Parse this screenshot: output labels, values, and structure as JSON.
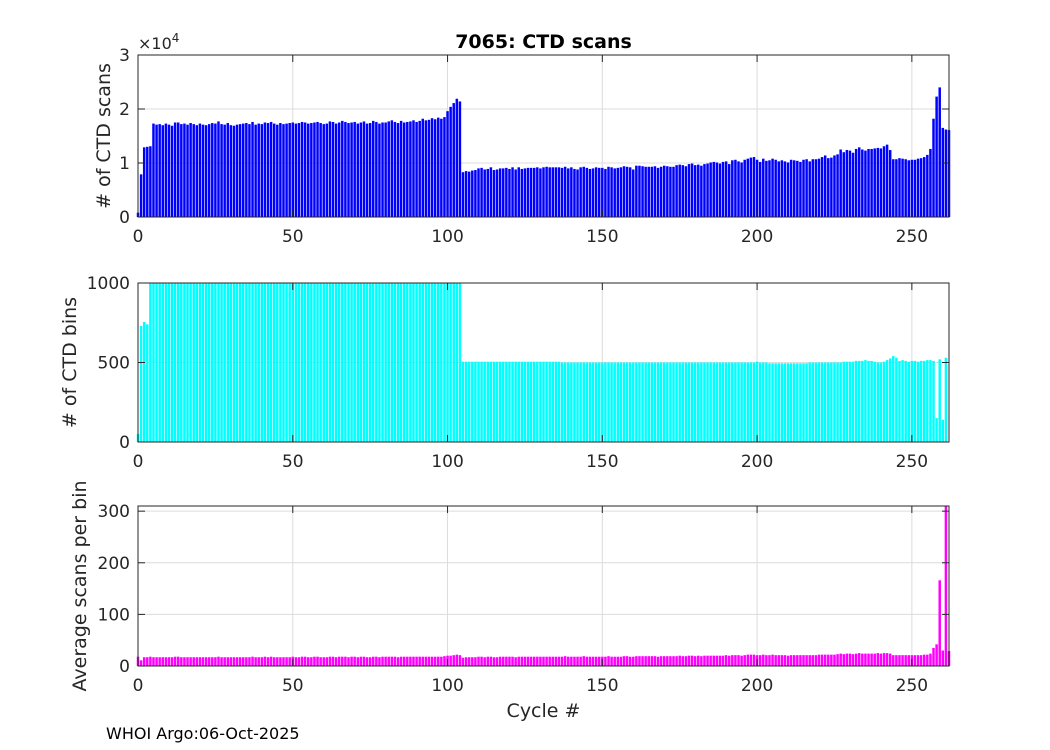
{
  "chart_data": [
    {
      "type": "bar",
      "title": "7065: CTD scans",
      "xlabel": "",
      "ylabel": "# of CTD scans",
      "exponent_label": "×10",
      "exponent_power": "4",
      "color": "#0000ff",
      "xlim": [
        0,
        262
      ],
      "ylim": [
        0,
        30000
      ],
      "xticks": [
        0,
        50,
        100,
        150,
        200,
        250
      ],
      "xtick_labels": [
        "0",
        "50",
        "100",
        "150",
        "200",
        "250"
      ],
      "yticks": [
        0,
        10000,
        20000,
        30000
      ],
      "ytick_labels": [
        "0",
        "1",
        "2",
        "3"
      ],
      "grid": true,
      "x_start": 0,
      "values": [
        800,
        7900,
        12900,
        13000,
        13100,
        17300,
        17100,
        17200,
        17000,
        17300,
        17100,
        16900,
        17500,
        17500,
        17200,
        17300,
        17100,
        17400,
        17200,
        17000,
        17300,
        17100,
        17000,
        17200,
        17400,
        17300,
        17700,
        17200,
        17100,
        17400,
        17000,
        16900,
        17100,
        17200,
        17300,
        17400,
        17200,
        17600,
        17100,
        17300,
        17200,
        17500,
        17400,
        17600,
        17300,
        17100,
        17400,
        17200,
        17300,
        17400,
        17500,
        17300,
        17400,
        17600,
        17500,
        17300,
        17400,
        17500,
        17600,
        17400,
        17200,
        17300,
        17700,
        17600,
        17300,
        17500,
        17800,
        17600,
        17400,
        17500,
        17600,
        17300,
        17500,
        17700,
        17300,
        17400,
        17800,
        17600,
        17300,
        17500,
        17500,
        17700,
        17900,
        17600,
        17400,
        17800,
        17500,
        17600,
        17700,
        17900,
        17600,
        17800,
        18200,
        17900,
        18000,
        18300,
        18100,
        18400,
        18200,
        18500,
        19600,
        20400,
        21100,
        21900,
        21400,
        8300,
        8500,
        8400,
        8600,
        8700,
        9000,
        9100,
        8800,
        8900,
        9200,
        8700,
        8800,
        9000,
        9000,
        9100,
        8900,
        9200,
        8800,
        9200,
        8900,
        9000,
        9100,
        9100,
        9100,
        9200,
        9000,
        9200,
        9300,
        9200,
        9200,
        9200,
        9200,
        9100,
        9300,
        9000,
        9200,
        8900,
        8800,
        9200,
        9300,
        9100,
        8900,
        9000,
        9200,
        9100,
        9100,
        8900,
        9300,
        9200,
        9000,
        9100,
        9200,
        9400,
        9300,
        9200,
        8800,
        9500,
        9500,
        9400,
        9300,
        9300,
        9300,
        9400,
        9100,
        9300,
        9500,
        9400,
        9300,
        9300,
        9600,
        9700,
        9600,
        9400,
        9800,
        9900,
        9600,
        9700,
        9500,
        9800,
        9900,
        10100,
        10200,
        10100,
        9900,
        10200,
        10300,
        9800,
        10500,
        10600,
        10300,
        10100,
        10600,
        10800,
        11000,
        11100,
        10600,
        10200,
        10800,
        10400,
        10500,
        10800,
        10600,
        10300,
        10500,
        10300,
        10100,
        10600,
        10500,
        10400,
        10200,
        10600,
        10700,
        10300,
        10700,
        10700,
        10800,
        11100,
        11400,
        10900,
        11000,
        11400,
        11600,
        12500,
        12000,
        12400,
        12300,
        11900,
        12600,
        12900,
        12500,
        12300,
        12600,
        12600,
        12700,
        12800,
        12700,
        13100,
        13400,
        12400,
        10700,
        10700,
        10900,
        10800,
        10700,
        10500,
        10600,
        10600,
        10800,
        10900,
        11100,
        11500,
        12600,
        18200,
        22300,
        24000,
        16500,
        16200,
        16100
      ]
    },
    {
      "type": "bar",
      "title": "",
      "xlabel": "",
      "ylabel": "# of CTD bins",
      "color": "#00ffff",
      "xlim": [
        0,
        262
      ],
      "ylim": [
        0,
        1000
      ],
      "xticks": [
        0,
        50,
        100,
        150,
        200,
        250
      ],
      "xtick_labels": [
        "0",
        "50",
        "100",
        "150",
        "200",
        "250"
      ],
      "yticks": [
        0,
        500,
        1000
      ],
      "ytick_labels": [
        "0",
        "500",
        "1000"
      ],
      "grid": true,
      "x_start": 0,
      "values": [
        50,
        730,
        755,
        740,
        1000,
        1000,
        1000,
        1000,
        1000,
        1000,
        1000,
        1000,
        1000,
        1000,
        1000,
        1000,
        1000,
        1000,
        1000,
        1000,
        1000,
        1000,
        1000,
        1000,
        1000,
        1000,
        1000,
        1000,
        1000,
        1000,
        1000,
        1000,
        1000,
        1000,
        1000,
        1000,
        1000,
        1000,
        1000,
        1000,
        1000,
        1000,
        1000,
        1000,
        1000,
        1000,
        1000,
        1000,
        1000,
        1000,
        1000,
        1000,
        1000,
        1000,
        1000,
        1000,
        1000,
        1000,
        1000,
        1000,
        1000,
        1000,
        1000,
        1000,
        1000,
        1000,
        1000,
        1000,
        1000,
        1000,
        1000,
        1000,
        1000,
        1000,
        1000,
        1000,
        1000,
        1000,
        1000,
        1000,
        1000,
        1000,
        1000,
        1000,
        1000,
        1000,
        1000,
        1000,
        1000,
        1000,
        1000,
        1000,
        1000,
        1000,
        1000,
        1000,
        1000,
        1000,
        1000,
        1000,
        1000,
        1000,
        1000,
        1000,
        1000,
        505,
        505,
        505,
        505,
        505,
        505,
        505,
        505,
        505,
        505,
        505,
        505,
        505,
        505,
        505,
        505,
        505,
        505,
        505,
        505,
        505,
        505,
        505,
        505,
        505,
        505,
        505,
        505,
        505,
        505,
        505,
        505,
        500,
        500,
        500,
        500,
        500,
        500,
        500,
        500,
        500,
        500,
        500,
        500,
        500,
        500,
        500,
        500,
        500,
        500,
        500,
        500,
        500,
        500,
        500,
        500,
        500,
        500,
        500,
        500,
        500,
        500,
        500,
        500,
        500,
        500,
        500,
        500,
        500,
        500,
        500,
        500,
        500,
        500,
        500,
        500,
        500,
        500,
        500,
        500,
        500,
        500,
        500,
        500,
        500,
        500,
        500,
        500,
        500,
        500,
        500,
        500,
        500,
        500,
        500,
        505,
        500,
        500,
        500,
        495,
        495,
        495,
        495,
        495,
        495,
        495,
        495,
        495,
        495,
        495,
        495,
        495,
        500,
        500,
        500,
        500,
        500,
        500,
        500,
        500,
        500,
        500,
        500,
        505,
        505,
        505,
        505,
        510,
        510,
        510,
        515,
        510,
        510,
        505,
        500,
        500,
        505,
        515,
        525,
        540,
        530,
        510,
        515,
        510,
        505,
        510,
        510,
        505,
        510,
        510,
        515,
        515,
        510,
        150,
        520,
        140,
        530
      ]
    },
    {
      "type": "bar",
      "title": "",
      "xlabel": "Cycle #",
      "ylabel": "Average scans per bin",
      "color": "#ff00ff",
      "xlim": [
        0,
        262
      ],
      "ylim": [
        0,
        310
      ],
      "xticks": [
        0,
        50,
        100,
        150,
        200,
        250
      ],
      "xtick_labels": [
        "0",
        "50",
        "100",
        "150",
        "200",
        "250"
      ],
      "yticks": [
        0,
        100,
        200,
        300
      ],
      "ytick_labels": [
        "0",
        "100",
        "200",
        "300"
      ],
      "grid": true,
      "x_start": 0,
      "values": [
        18,
        11,
        17,
        17,
        18,
        17,
        17,
        17,
        17,
        17,
        17,
        17,
        18,
        18,
        17,
        17,
        17,
        17,
        17,
        17,
        17,
        17,
        17,
        17,
        17,
        17,
        18,
        17,
        17,
        17,
        17,
        17,
        17,
        17,
        17,
        17,
        17,
        18,
        17,
        17,
        17,
        18,
        17,
        18,
        17,
        17,
        17,
        17,
        17,
        17,
        18,
        17,
        17,
        18,
        18,
        17,
        17,
        18,
        18,
        17,
        17,
        17,
        18,
        18,
        17,
        18,
        18,
        18,
        17,
        18,
        18,
        17,
        18,
        18,
        17,
        17,
        18,
        18,
        17,
        18,
        18,
        18,
        18,
        18,
        17,
        18,
        18,
        18,
        18,
        18,
        18,
        18,
        18,
        18,
        18,
        18,
        18,
        18,
        18,
        19,
        20,
        20,
        21,
        22,
        21,
        16,
        17,
        17,
        17,
        17,
        18,
        18,
        17,
        18,
        18,
        17,
        17,
        18,
        18,
        18,
        18,
        18,
        17,
        18,
        18,
        18,
        18,
        18,
        18,
        18,
        18,
        18,
        18,
        18,
        18,
        18,
        18,
        18,
        19,
        18,
        18,
        18,
        18,
        18,
        19,
        18,
        18,
        18,
        18,
        18,
        18,
        18,
        19,
        18,
        18,
        18,
        18,
        19,
        19,
        18,
        18,
        19,
        19,
        19,
        19,
        19,
        19,
        19,
        18,
        19,
        19,
        19,
        19,
        19,
        19,
        20,
        19,
        19,
        20,
        20,
        19,
        20,
        19,
        20,
        20,
        20,
        20,
        20,
        20,
        20,
        21,
        20,
        21,
        21,
        21,
        20,
        21,
        22,
        22,
        22,
        21,
        21,
        22,
        21,
        21,
        22,
        21,
        21,
        21,
        21,
        20,
        21,
        21,
        21,
        21,
        21,
        21,
        21,
        21,
        21,
        22,
        22,
        22,
        22,
        22,
        22,
        23,
        24,
        23,
        24,
        24,
        23,
        24,
        25,
        24,
        24,
        24,
        24,
        24,
        25,
        24,
        25,
        25,
        24,
        21,
        21,
        21,
        21,
        21,
        21,
        21,
        21,
        21,
        21,
        22,
        22,
        24,
        35,
        42,
        166,
        30,
        310,
        29
      ]
    }
  ],
  "footer": "WHOI Argo:06-Oct-2025"
}
